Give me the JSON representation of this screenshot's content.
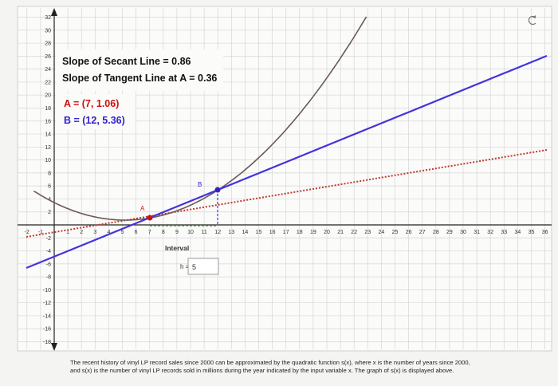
{
  "info": {
    "secant": "Slope of Secant Line = 0.86",
    "tangent": "Slope of Tangent Line at A = 0.36",
    "point_a": "A = (7, 1.06)",
    "point_b": "B = (12, 5.36)"
  },
  "points": {
    "a_label": "A",
    "b_label": "B"
  },
  "controls": {
    "interval": "Interval",
    "h_label": "h =",
    "h_value": "5"
  },
  "axes": {
    "xticks": [
      -2,
      -1,
      1,
      2,
      3,
      4,
      5,
      6,
      7,
      8,
      9,
      10,
      11,
      12,
      13,
      14,
      15,
      16,
      17,
      18,
      19,
      20,
      21,
      22,
      23,
      24,
      25,
      26,
      27,
      28,
      29,
      30,
      31,
      32,
      33,
      34,
      35,
      36
    ],
    "yticks": [
      -18,
      -16,
      -14,
      -12,
      -10,
      -8,
      -6,
      -4,
      -2,
      2,
      4,
      6,
      8,
      10,
      12,
      14,
      16,
      18,
      20,
      22,
      24,
      26,
      28,
      30,
      32
    ]
  },
  "caption": [
    "The recent history of vinyl LP record sales since 2000 can be approximated by the quadratic function s(x), where x is the number of years since 2000,",
    "and s(x) is the number of vinyl LP records sold in millions during the year indicated by the input variable x. The graph of s(x) is displayed above."
  ]
}
